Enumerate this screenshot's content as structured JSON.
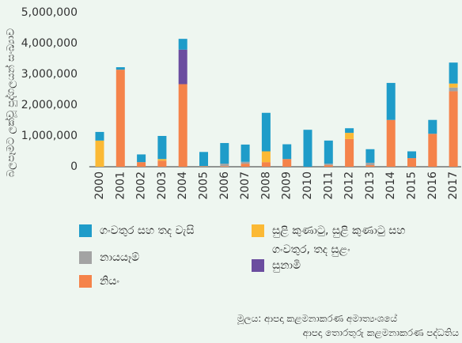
{
  "chart_data": {
    "type": "bar",
    "stacked": true,
    "ylabel": "බලපෑමට ලක්වූ පුද්ගලයන් සංඛ්‍යාව",
    "categories": [
      "2000",
      "2001",
      "2002",
      "2003",
      "2004",
      "2005",
      "2006",
      "2007",
      "2008",
      "2009",
      "2010",
      "2011",
      "2012",
      "2013",
      "2014",
      "2015",
      "2016",
      "2017"
    ],
    "series": [
      {
        "name": "නියං",
        "color": "#f5834a",
        "values": [
          0,
          3150000,
          150000,
          200000,
          2680000,
          20000,
          20000,
          100000,
          150000,
          250000,
          0,
          50000,
          900000,
          50000,
          1520000,
          280000,
          1070000,
          2450000
        ]
      },
      {
        "name": "නායයෑම්",
        "color": "#a3a3a3",
        "values": [
          0,
          0,
          0,
          0,
          0,
          0,
          80000,
          60000,
          0,
          0,
          0,
          50000,
          0,
          80000,
          0,
          0,
          0,
          120000
        ]
      },
      {
        "name": "සුළි කුණාටු, සුළි කුණාටු සහ ගංවතුර, තද සුළං",
        "color": "#fbb935",
        "values": [
          850000,
          0,
          0,
          50000,
          0,
          0,
          0,
          0,
          350000,
          0,
          0,
          0,
          200000,
          0,
          0,
          0,
          0,
          130000
        ]
      },
      {
        "name": "සුනාමි",
        "color": "#6b4d9f",
        "values": [
          0,
          0,
          0,
          0,
          1120000,
          0,
          0,
          0,
          0,
          0,
          0,
          0,
          0,
          0,
          0,
          0,
          0,
          0
        ]
      },
      {
        "name": "ගංවතුර සහ තද වැසි",
        "color": "#1f9cc9",
        "values": [
          280000,
          80000,
          250000,
          750000,
          350000,
          460000,
          670000,
          560000,
          1250000,
          480000,
          1200000,
          750000,
          150000,
          440000,
          1200000,
          220000,
          450000,
          680000
        ]
      }
    ],
    "ylim": [
      0,
      5000000
    ],
    "yticks": [
      0,
      {
        "value": 1000000,
        "label": "1,000,000"
      },
      {
        "value": 2000000,
        "label": "2,000,000"
      },
      {
        "value": 3000000,
        "label": "3,000,000"
      },
      {
        "value": 4000000,
        "label": "4,000,000"
      },
      {
        "value": 5000000,
        "label": "5,000,000"
      }
    ],
    "source": [
      "මූලය: ආපදා කළමනාකරණ අමාත්‍යංශයේ",
      "ආපදා තොරතුරු කළමනාකරණ පද්ධතිය"
    ]
  }
}
